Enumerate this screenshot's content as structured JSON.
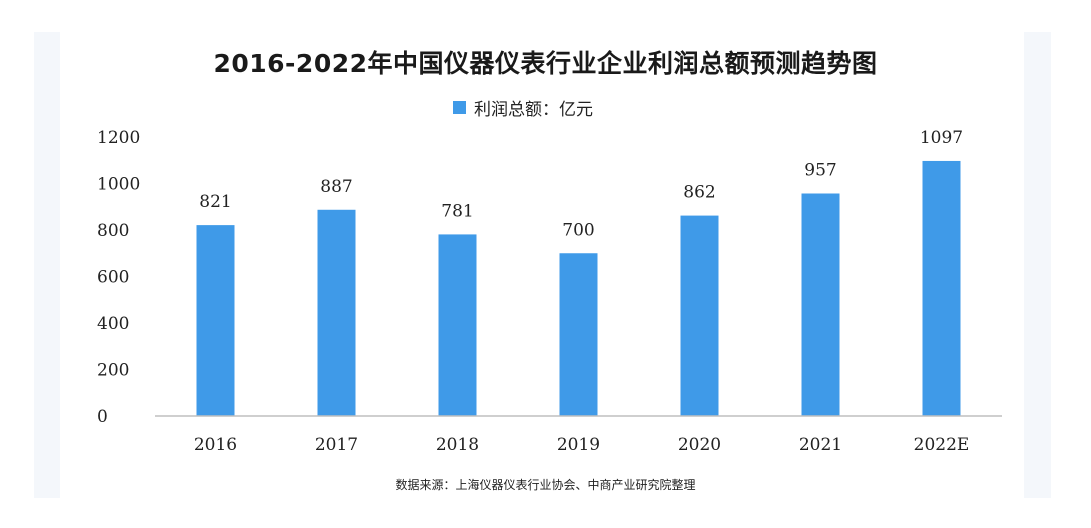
{
  "chart_data": {
    "type": "bar",
    "title": "2016-2022年中国仪器仪表行业企业利润总额预测趋势图",
    "categories": [
      "2016",
      "2017",
      "2018",
      "2019",
      "2020",
      "2021",
      "2022E"
    ],
    "series": [
      {
        "name": "利润总额：亿元",
        "values": [
          821,
          887,
          781,
          700,
          862,
          957,
          1097
        ]
      }
    ],
    "ylim": [
      0,
      1200
    ],
    "yticks": [
      "0",
      "200",
      "400",
      "600",
      "800",
      "1000",
      "1200"
    ],
    "grid": false,
    "legend_position": "top-center",
    "bar_color": "#3f9ae8"
  },
  "source": "数据来源：上海仪器仪表行业协会、中商产业研究院整理"
}
